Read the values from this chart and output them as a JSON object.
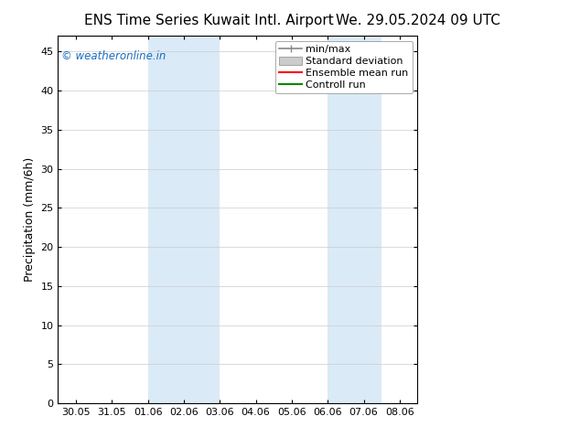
{
  "title_left": "ENS Time Series Kuwait Intl. Airport",
  "title_right": "We. 29.05.2024 09 UTC",
  "ylabel": "Precipitation (mm/6h)",
  "watermark": "© weatheronline.in",
  "watermark_color": "#1a6bbf",
  "ylim": [
    0,
    47
  ],
  "yticks": [
    0,
    5,
    10,
    15,
    20,
    25,
    30,
    35,
    40,
    45
  ],
  "xtick_labels": [
    "30.05",
    "31.05",
    "01.06",
    "02.06",
    "03.06",
    "04.06",
    "05.06",
    "06.06",
    "07.06",
    "08.06"
  ],
  "shaded_bands": [
    {
      "x_start": 2,
      "x_end": 3
    },
    {
      "x_start": 3,
      "x_end": 4
    },
    {
      "x_start": 7,
      "x_end": 8
    },
    {
      "x_start": 8,
      "x_end": 8.5
    }
  ],
  "shade_color": "#daeaf7",
  "bg_color": "#ffffff",
  "plot_bg_color": "#ffffff",
  "legend_items": [
    {
      "label": "min/max",
      "color": "#999999"
    },
    {
      "label": "Standard deviation",
      "color": "#cccccc"
    },
    {
      "label": "Ensemble mean run",
      "color": "#ff0000"
    },
    {
      "label": "Controll run",
      "color": "#008800"
    }
  ],
  "title_fontsize": 11,
  "axis_label_fontsize": 9,
  "tick_fontsize": 8,
  "legend_fontsize": 8,
  "grid_color": "#cccccc",
  "spine_color": "#000000",
  "xlim_left": -0.5,
  "xlim_right": 9.5
}
